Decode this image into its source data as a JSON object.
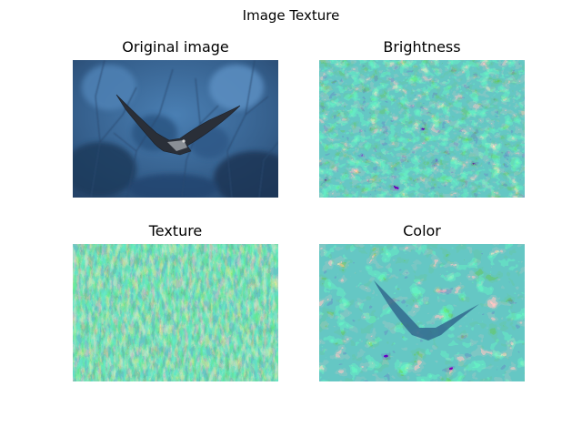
{
  "figure": {
    "title": "Image Texture",
    "panels": [
      {
        "title": "Original image",
        "kind": "photo",
        "description": "bird of prey in flight against blue blurred tree branches"
      },
      {
        "title": "Brightness",
        "kind": "segmentation-map",
        "colormap": "viridis"
      },
      {
        "title": "Texture",
        "kind": "segmentation-map",
        "colormap": "viridis"
      },
      {
        "title": "Color",
        "kind": "segmentation-map",
        "colormap": "viridis"
      }
    ]
  },
  "colors": {
    "photo_sky": "#3b6a99",
    "photo_dark": "#1d3350",
    "viridis_purple": "#440154",
    "viridis_blue": "#31688e",
    "viridis_teal": "#21918c",
    "viridis_green": "#35b779",
    "viridis_yellow": "#fde725"
  }
}
